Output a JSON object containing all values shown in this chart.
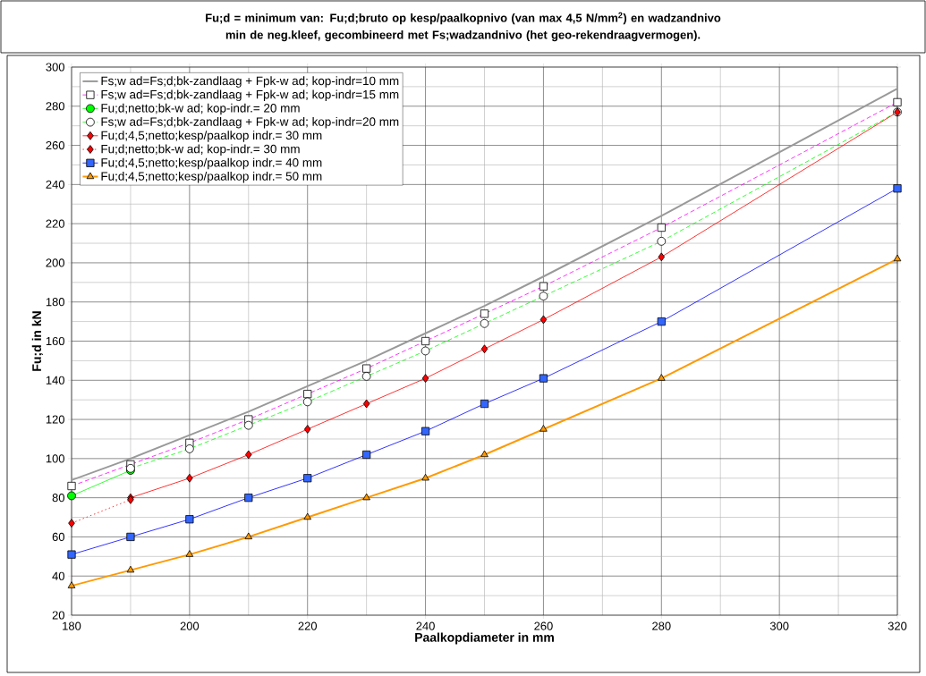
{
  "chart_data": {
    "type": "line",
    "title": "Fu;d = minimum van: Fu;d;bruto op kesp/paalkopnivo (van max 4,5 N/mm$^{2}$) en wadzandnivo min de neg.kleef, gecombineerd met Fs;wadzandnivo (het geo-rekendraagvermogen).",
    "xlabel": "Paalkopdiameter in mm",
    "ylabel": "Fu;d in kN",
    "xlim": [
      180,
      320
    ],
    "ylim": [
      20,
      300
    ],
    "xticks": [
      180,
      200,
      220,
      240,
      260,
      280,
      300,
      320
    ],
    "yticks": [
      20,
      40,
      60,
      80,
      100,
      120,
      140,
      160,
      180,
      200,
      220,
      240,
      260,
      280,
      300
    ],
    "grid": true,
    "legend": "top left",
    "series": [
      {
        "name": "Fs;w ad=Fs;d;bk-zandlaag + Fpk-w ad; kop-indr=10 mm",
        "color": "#999999",
        "marker": "none",
        "line_style": "solid",
        "x": [
          180,
          190,
          200,
          210,
          220,
          230,
          240,
          250,
          260,
          280,
          320
        ],
        "values": [
          89,
          100,
          112,
          124,
          137,
          150,
          164,
          178,
          193,
          224,
          289
        ]
      },
      {
        "name": "Fs;w ad=Fs;d;bk-zandlaag + Fpk-w ad; kop-indr=15 mm",
        "color": "#ff00ff",
        "marker": "square",
        "line_style": "dashed",
        "x": [
          180,
          190,
          200,
          210,
          220,
          230,
          240,
          250,
          260,
          280,
          320
        ],
        "values": [
          86,
          97,
          108,
          120,
          133,
          146,
          160,
          174,
          188,
          218,
          282
        ]
      },
      {
        "name": "Fu;d;netto;bk-w ad; kop-indr.= 20 mm",
        "color": "#00ff00",
        "marker": "circle",
        "line_style": "solid",
        "x": [
          180,
          190
        ],
        "values": [
          81,
          94
        ]
      },
      {
        "name": "Fs;w ad=Fs;d;bk-zandlaag + Fpk-w ad; kop-indr=20 mm",
        "color": "#00ff00",
        "marker": "circle",
        "line_style": "dashed",
        "x": [
          190,
          200,
          210,
          220,
          230,
          240,
          250,
          260,
          280,
          320
        ],
        "values": [
          95,
          105,
          117,
          129,
          142,
          155,
          169,
          183,
          211,
          277
        ]
      },
      {
        "name": "Fu;d;4,5;netto;kesp/paalkop indr.= 30 mm",
        "color": "#ff0000",
        "marker": "diamond",
        "line_style": "solid",
        "x": [
          190,
          200,
          210,
          220,
          230,
          240,
          250,
          260,
          280,
          320
        ],
        "values": [
          80,
          90,
          102,
          115,
          128,
          141,
          156,
          171,
          203,
          277
        ]
      },
      {
        "name": "Fu;d;netto;bk-w ad; kop-indr.= 30 mm",
        "color": "#ff0000",
        "marker": "diamond",
        "line_style": "dotted",
        "x": [
          180,
          190
        ],
        "values": [
          67,
          79
        ]
      },
      {
        "name": "Fu;d;4,5;netto;kesp/paalkop indr.= 40 mm",
        "color": "#0000ff",
        "marker": "square",
        "line_style": "solid",
        "x": [
          180,
          190,
          200,
          210,
          220,
          230,
          240,
          250,
          260,
          280,
          320
        ],
        "values": [
          51,
          60,
          69,
          80,
          90,
          102,
          114,
          128,
          141,
          170,
          238
        ]
      },
      {
        "name": "Fu;d;4,5;netto;kesp/paalkop indr.= 50 mm",
        "color": "#ff9900",
        "marker": "triangle",
        "line_style": "solid",
        "x": [
          180,
          190,
          200,
          210,
          220,
          230,
          240,
          250,
          260,
          280,
          320
        ],
        "values": [
          35,
          43,
          51,
          60,
          70,
          80,
          90,
          102,
          115,
          141,
          202
        ]
      }
    ]
  }
}
